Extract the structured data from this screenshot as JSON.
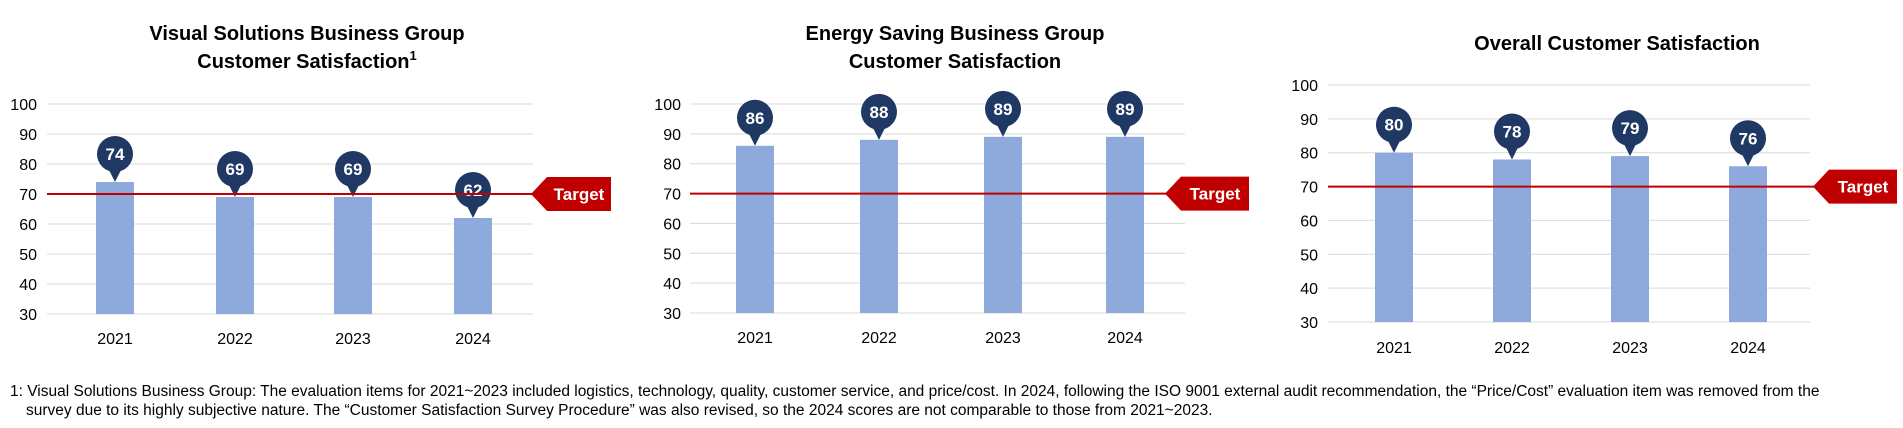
{
  "colors": {
    "bar": "#8eaadc",
    "bubble": "#1f3864",
    "target_line": "#c00000",
    "gridline": "#d9d9d9",
    "axis_text": "#000000"
  },
  "chart_data": [
    {
      "type": "bar",
      "title_lines": [
        "Visual Solutions Business Group",
        "Customer Satisfaction"
      ],
      "title_superscript": "1",
      "categories": [
        "2021",
        "2022",
        "2023",
        "2024"
      ],
      "values": [
        74,
        69,
        69,
        62
      ],
      "ylim": [
        30,
        100
      ],
      "yticks": [
        "30",
        "40",
        "50",
        "60",
        "70",
        "80",
        "90",
        "100"
      ],
      "target_value": 70,
      "target_label": "Target",
      "grid": true
    },
    {
      "type": "bar",
      "title_lines": [
        "Energy Saving Business Group",
        "Customer Satisfaction"
      ],
      "title_superscript": "",
      "categories": [
        "2021",
        "2022",
        "2023",
        "2024"
      ],
      "values": [
        86,
        88,
        89,
        89
      ],
      "ylim": [
        30,
        100
      ],
      "yticks": [
        "30",
        "40",
        "50",
        "60",
        "70",
        "80",
        "90",
        "100"
      ],
      "target_value": 70,
      "target_label": "Target",
      "grid": true
    },
    {
      "type": "bar",
      "title_lines": [
        "Overall Customer Satisfaction"
      ],
      "title_superscript": "",
      "categories": [
        "2021",
        "2022",
        "2023",
        "2024"
      ],
      "values": [
        80,
        78,
        79,
        76
      ],
      "ylim": [
        30,
        100
      ],
      "yticks": [
        "30",
        "40",
        "50",
        "60",
        "70",
        "80",
        "90",
        "100"
      ],
      "target_value": 70,
      "target_label": "Target",
      "grid": true
    }
  ],
  "footnote": {
    "line1": "1: Visual Solutions Business Group: The evaluation items for 2021~2023 included logistics, technology, quality, customer service, and price/cost. In 2024, following the ISO 9001 external audit recommendation, the “Price/Cost” evaluation item was removed from the",
    "line2": "survey due to its highly subjective nature. The “Customer Satisfaction Survey Procedure” was also revised, so the 2024 scores are not comparable to those from 2021~2023."
  }
}
